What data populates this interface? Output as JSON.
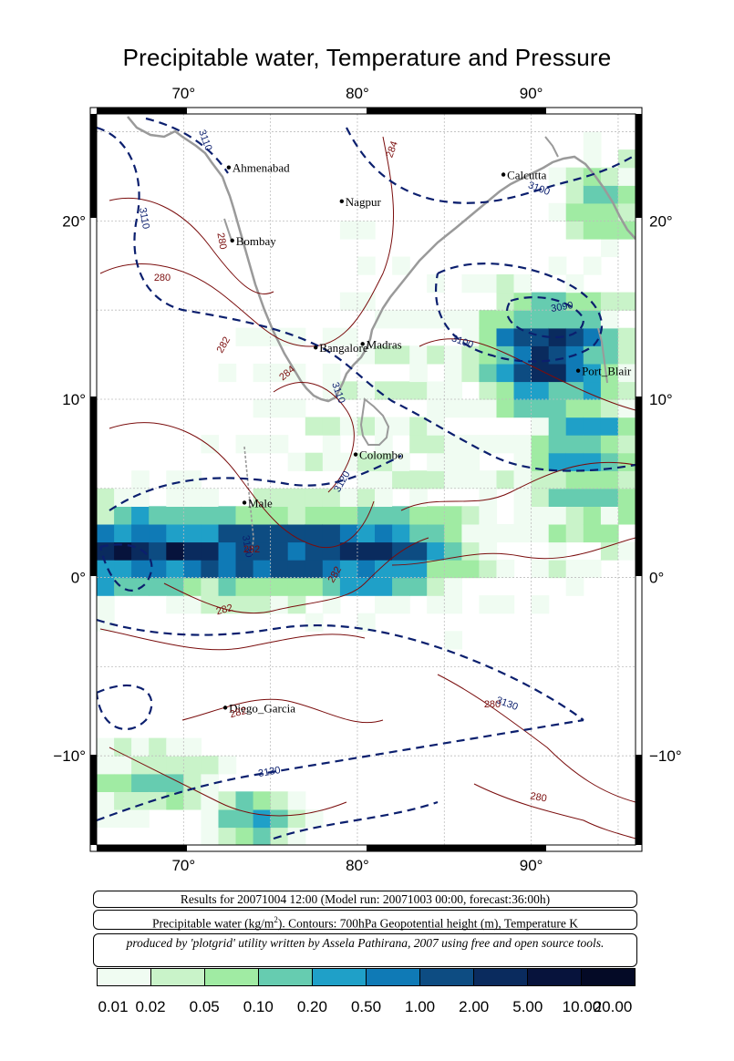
{
  "title": "Precipitable water, Temperature and Pressure",
  "axes": {
    "lon_ticks": [
      "70°",
      "80°",
      "90°"
    ],
    "lat_ticks": [
      "20°",
      "10°",
      "0°",
      "−10°"
    ],
    "lon_range": [
      65,
      96
    ],
    "lat_range": [
      -15,
      26
    ]
  },
  "cities": [
    {
      "name": "Ahmenabad",
      "lon": 72.6,
      "lat": 23.0
    },
    {
      "name": "Nagpur",
      "lon": 79.1,
      "lat": 21.1
    },
    {
      "name": "Calcutta",
      "lon": 88.4,
      "lat": 22.6
    },
    {
      "name": "Bombay",
      "lon": 72.8,
      "lat": 18.9
    },
    {
      "name": "Bangalore",
      "lon": 77.6,
      "lat": 12.9
    },
    {
      "name": "Madras",
      "lon": 80.3,
      "lat": 13.1
    },
    {
      "name": "Port_Blair",
      "lon": 92.7,
      "lat": 11.6
    },
    {
      "name": "Colombo",
      "lon": 79.9,
      "lat": 6.9
    },
    {
      "name": "Male",
      "lon": 73.5,
      "lat": 4.2
    },
    {
      "name": "Diego_Garcia",
      "lon": 72.4,
      "lat": -7.3
    }
  ],
  "contour_labels": {
    "geopotential": [
      "3110",
      "3110",
      "3100",
      "3090",
      "3100",
      "3110",
      "3120",
      "3130",
      "3130",
      "3130"
    ],
    "temperature": [
      "284",
      "280",
      "280",
      "282",
      "284",
      "282",
      "282",
      "282",
      "282",
      "280",
      "280"
    ]
  },
  "info": {
    "results": "Results for 20071004 12:00 (Model run: 20071003 00:00, forecast:36:00h)",
    "legend_pre": "Precipitable water (kg/m",
    "legend_sup": "2",
    "legend_post": ").  Contours: 700hPa Geopotential height (m), Temperature K",
    "credit": "produced by 'plotgrid' utility written by Assela Pathirana, 2007 using free and open source tools."
  },
  "colorbar": {
    "colors": [
      "#f0fcf2",
      "#c9f3c9",
      "#a0eba3",
      "#66ccb0",
      "#1fa0c8",
      "#0f7ab6",
      "#0d4c82",
      "#0a2b5e",
      "#07133c",
      "#040a26"
    ],
    "labels": [
      "0.01",
      "0.02",
      "0.05",
      "0.10",
      "0.20",
      "0.50",
      "1.00",
      "2.00",
      "5.00",
      "10.00",
      "20.00"
    ]
  }
}
